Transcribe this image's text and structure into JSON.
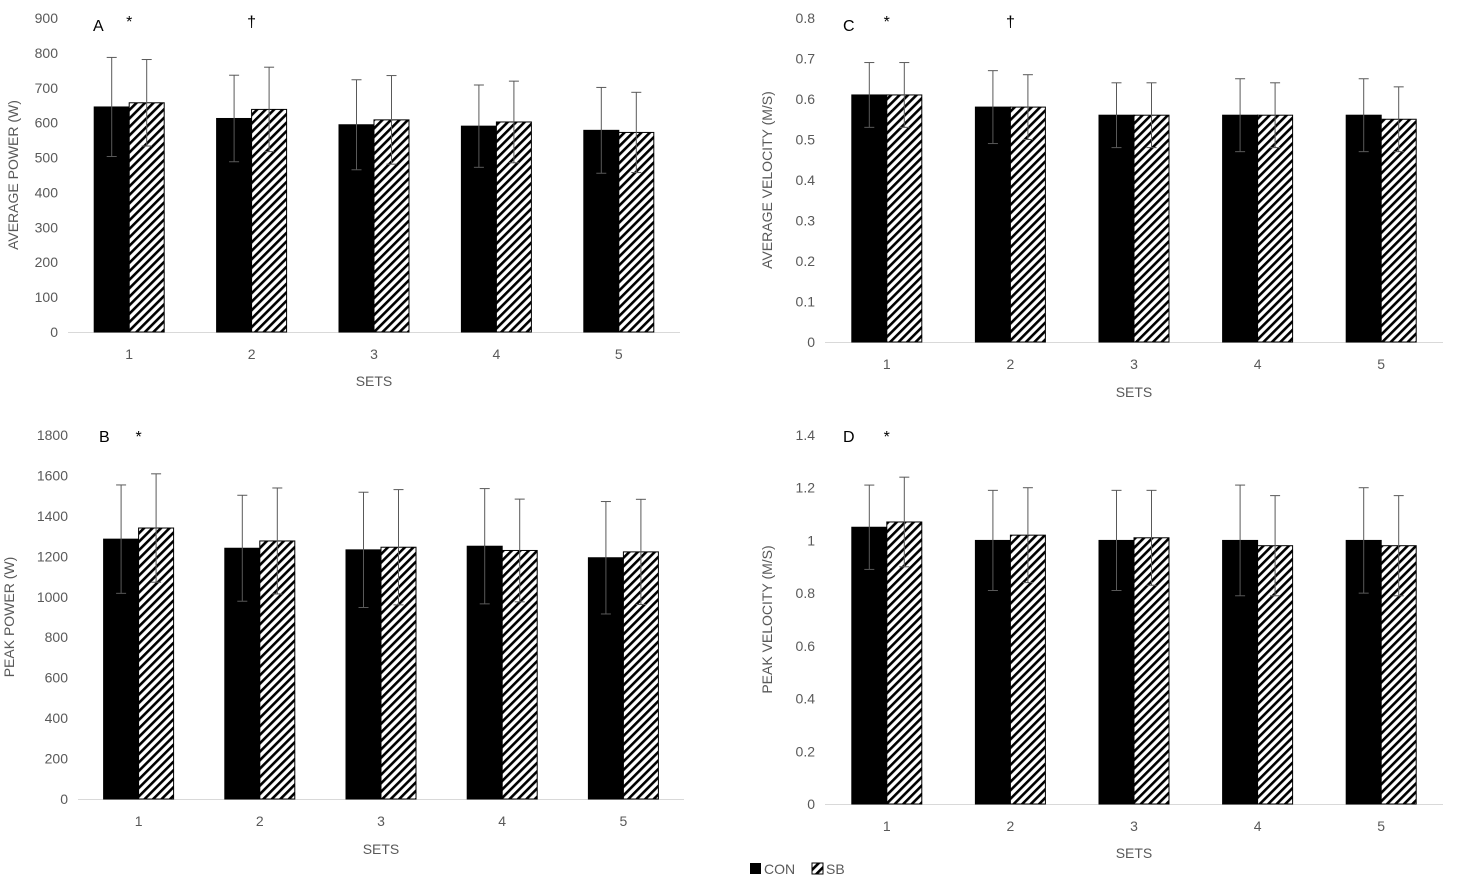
{
  "legend": [
    {
      "label": "CON",
      "style": "solid",
      "color": "#000000"
    },
    {
      "label": "SB",
      "style": "hatched",
      "color": "#000000"
    }
  ],
  "chart_data": [
    {
      "type": "bar",
      "panel": "A",
      "xlabel": "SETS",
      "ylabel": "AVERAGE POWER (W)",
      "categories": [
        "1",
        "2",
        "3",
        "4",
        "5"
      ],
      "ylim": [
        0,
        900
      ],
      "yticks": [
        "0",
        "100",
        "200",
        "300",
        "400",
        "500",
        "600",
        "700",
        "800",
        "900"
      ],
      "series": [
        {
          "name": "CON",
          "values": [
            645,
            612,
            594,
            590,
            578
          ],
          "errors": [
            142,
            124,
            129,
            118,
            123
          ]
        },
        {
          "name": "SB",
          "values": [
            657,
            638,
            608,
            602,
            572
          ],
          "errors": [
            124,
            121,
            127,
            117,
            115
          ]
        }
      ],
      "annotations": [
        {
          "category": "1",
          "text": "*"
        },
        {
          "category": "2",
          "text": "†"
        }
      ]
    },
    {
      "type": "bar",
      "panel": "B",
      "xlabel": "SETS",
      "ylabel": "PEAK POWER (W)",
      "categories": [
        "1",
        "2",
        "3",
        "4",
        "5"
      ],
      "ylim": [
        0,
        1800
      ],
      "yticks": [
        "0",
        "200",
        "400",
        "600",
        "800",
        "1000",
        "1200",
        "1400",
        "1600",
        "1800"
      ],
      "series": [
        {
          "name": "CON",
          "values": [
            1285,
            1240,
            1232,
            1250,
            1193
          ],
          "errors": [
            268,
            262,
            285,
            285,
            278
          ]
        },
        {
          "name": "SB",
          "values": [
            1340,
            1276,
            1245,
            1229,
            1222
          ],
          "errors": [
            268,
            262,
            285,
            254,
            260
          ]
        }
      ],
      "annotations": [
        {
          "category": "1",
          "text": "*"
        }
      ]
    },
    {
      "type": "bar",
      "panel": "C",
      "xlabel": "SETS",
      "ylabel": "AVERAGE VELOCITY (M/S)",
      "categories": [
        "1",
        "2",
        "3",
        "4",
        "5"
      ],
      "ylim": [
        0,
        0.8
      ],
      "yticks": [
        "0",
        "0.1",
        "0.2",
        "0.3",
        "0.4",
        "0.5",
        "0.6",
        "0.7",
        "0.8"
      ],
      "series": [
        {
          "name": "CON",
          "values": [
            0.61,
            0.58,
            0.56,
            0.56,
            0.56
          ],
          "errors": [
            0.08,
            0.09,
            0.08,
            0.09,
            0.09
          ]
        },
        {
          "name": "SB",
          "values": [
            0.61,
            0.58,
            0.56,
            0.56,
            0.55
          ],
          "errors": [
            0.08,
            0.08,
            0.08,
            0.08,
            0.08
          ]
        }
      ],
      "annotations": [
        {
          "category": "1",
          "text": "*"
        },
        {
          "category": "2",
          "text": "†"
        }
      ]
    },
    {
      "type": "bar",
      "panel": "D",
      "xlabel": "SETS",
      "ylabel": "PEAK VELOCITY (M/S)",
      "categories": [
        "1",
        "2",
        "3",
        "4",
        "5"
      ],
      "ylim": [
        0,
        1.4
      ],
      "yticks": [
        "0",
        "0.2",
        "0.4",
        "0.6",
        "0.8",
        "1",
        "1.2",
        "1.4"
      ],
      "series": [
        {
          "name": "CON",
          "values": [
            1.05,
            1.0,
            1.0,
            1.0,
            1.0
          ],
          "errors": [
            0.16,
            0.19,
            0.19,
            0.21,
            0.2
          ]
        },
        {
          "name": "SB",
          "values": [
            1.07,
            1.02,
            1.01,
            0.98,
            0.98
          ],
          "errors": [
            0.17,
            0.18,
            0.18,
            0.19,
            0.19
          ]
        }
      ],
      "annotations": [
        {
          "category": "1",
          "text": "*"
        }
      ]
    }
  ]
}
